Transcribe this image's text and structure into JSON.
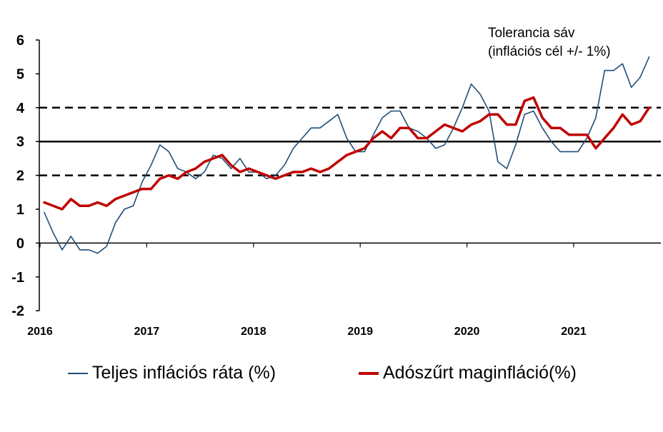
{
  "chart_data": {
    "type": "line",
    "title": "",
    "xlabel": "",
    "ylabel": "",
    "ylim": [
      -2,
      6
    ],
    "yticks": [
      "-2",
      "-1",
      "0",
      "1",
      "2",
      "3",
      "4",
      "5",
      "6"
    ],
    "xticks": [
      "2016",
      "2017",
      "2018",
      "2019",
      "2020",
      "2021"
    ],
    "x_start": "2016-01",
    "x_frequency": "monthly",
    "grid": false,
    "legend_position": "bottom",
    "series": [
      {
        "name": "Teljes inflációs ráta (%)",
        "color": "#1f4e79",
        "values": [
          0.9,
          0.3,
          -0.2,
          0.2,
          -0.2,
          -0.2,
          -0.3,
          -0.1,
          0.6,
          1.0,
          1.1,
          1.8,
          2.3,
          2.9,
          2.7,
          2.2,
          2.1,
          1.9,
          2.1,
          2.6,
          2.5,
          2.2,
          2.5,
          2.1,
          2.1,
          1.9,
          2.0,
          2.3,
          2.8,
          3.1,
          3.4,
          3.4,
          3.6,
          3.8,
          3.1,
          2.7,
          2.7,
          3.2,
          3.7,
          3.9,
          3.9,
          3.4,
          3.3,
          3.1,
          2.8,
          2.9,
          3.4,
          4.0,
          4.7,
          4.4,
          3.9,
          2.4,
          2.2,
          2.9,
          3.8,
          3.9,
          3.4,
          3.0,
          2.7,
          2.7,
          2.7,
          3.1,
          3.7,
          5.1,
          5.1,
          5.3,
          4.6,
          4.9,
          5.5
        ]
      },
      {
        "name": "Adószűrt maginfláció(%)",
        "color": "#c00000",
        "values": [
          1.2,
          1.1,
          1.0,
          1.3,
          1.1,
          1.1,
          1.2,
          1.1,
          1.3,
          1.4,
          1.5,
          1.6,
          1.6,
          1.9,
          2.0,
          1.9,
          2.1,
          2.2,
          2.4,
          2.5,
          2.6,
          2.3,
          2.1,
          2.2,
          2.1,
          2.0,
          1.9,
          2.0,
          2.1,
          2.1,
          2.2,
          2.1,
          2.2,
          2.4,
          2.6,
          2.7,
          2.8,
          3.1,
          3.3,
          3.1,
          3.4,
          3.4,
          3.1,
          3.1,
          3.3,
          3.5,
          3.4,
          3.3,
          3.5,
          3.6,
          3.8,
          3.8,
          3.5,
          3.5,
          4.2,
          4.3,
          3.7,
          3.4,
          3.4,
          3.2,
          3.2,
          3.2,
          2.8,
          3.1,
          3.4,
          3.8,
          3.5,
          3.6,
          4.0
        ]
      }
    ],
    "reference_lines": [
      {
        "value": 4,
        "style": "dashed",
        "color": "#000000"
      },
      {
        "value": 3,
        "style": "solid",
        "color": "#000000"
      },
      {
        "value": 2,
        "style": "dashed",
        "color": "#000000"
      }
    ],
    "annotation": {
      "line1": "Tolerancia sáv",
      "line2": "(inflációs cél +/- 1%)"
    }
  }
}
